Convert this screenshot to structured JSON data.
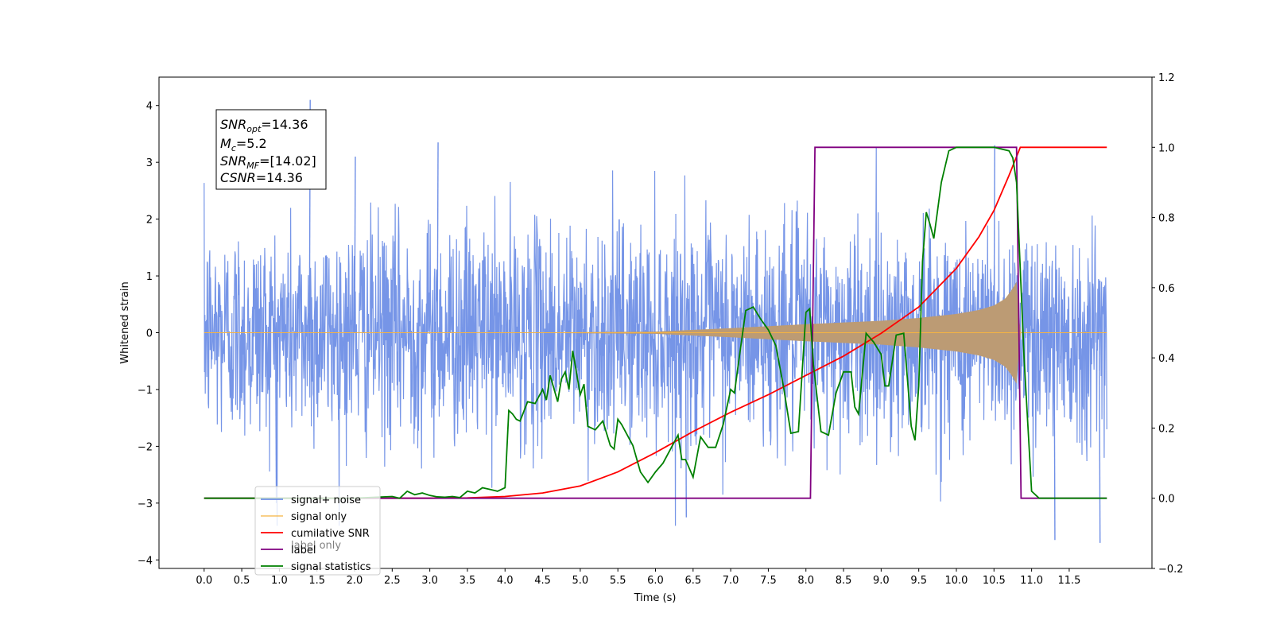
{
  "chart_data": {
    "type": "line",
    "xlabel": "Time (s)",
    "ylabel": "Whitened strain",
    "xlim": [
      -0.6,
      12.6
    ],
    "ylim": [
      -4.15,
      4.5
    ],
    "y2lim": [
      -0.2,
      1.2
    ],
    "x_ticks": [
      "0.0",
      "0.5",
      "1.0",
      "1.5",
      "2.0",
      "2.5",
      "3.0",
      "3.5",
      "4.0",
      "4.5",
      "5.0",
      "5.5",
      "6.0",
      "6.5",
      "7.0",
      "7.5",
      "8.0",
      "8.5",
      "9.0",
      "9.5",
      "10.0",
      "10.5",
      "11.0",
      "11.5"
    ],
    "y_ticks": [
      "4",
      "3",
      "2",
      "1",
      "0",
      "−1",
      "−2",
      "−3",
      "−4"
    ],
    "y2_ticks": [
      "1.2",
      "1.0",
      "0.8",
      "0.6",
      "0.4",
      "0.2",
      "0.0",
      "−0.2"
    ],
    "annotation": {
      "line1_main": "SNR",
      "line1_sub": "opt",
      "line1_val": "=14.36",
      "line2_main": "M",
      "line2_sub": "c",
      "line2_val": "=5.2",
      "line3_main": "SNR",
      "line3_sub": "MF",
      "line3_val": "=[14.02]",
      "line4_main": "CSNR",
      "line4_val": "=14.36"
    },
    "legend": {
      "location": "lower left",
      "entries": [
        "signal+ noise",
        "signal only",
        "cumilative SNR",
        "label",
        "signal statistics"
      ],
      "hidden_text": [
        "label only"
      ]
    },
    "colors": {
      "noise": "#6f8fe6",
      "signal": "#f5b342",
      "snr": "#ff0000",
      "label": "#800080",
      "stats": "#008000",
      "overlap": "#bc9b74"
    },
    "series": [
      {
        "name": "signal+ noise",
        "axis": "left",
        "description_values": {
          "x_start": 0.0,
          "x_end": 12.0,
          "typical_range": [
            -2.5,
            2.5
          ],
          "max": 4.1,
          "min": -3.7
        }
      },
      {
        "name": "signal only",
        "axis": "left",
        "envelope": {
          "x": [
            0.0,
            4.0,
            6.0,
            7.0,
            8.0,
            9.0,
            9.5,
            10.0,
            10.3,
            10.5,
            10.65,
            10.75,
            10.8,
            10.85,
            12.0
          ],
          "amp": [
            0.0,
            0.0,
            0.02,
            0.08,
            0.15,
            0.21,
            0.26,
            0.33,
            0.4,
            0.48,
            0.6,
            0.78,
            0.9,
            0.0,
            0.0
          ]
        }
      },
      {
        "name": "cumilative SNR",
        "axis": "right",
        "x": [
          0.0,
          1.0,
          2.0,
          3.0,
          3.5,
          4.0,
          4.5,
          5.0,
          5.5,
          6.0,
          6.5,
          7.0,
          7.5,
          8.0,
          8.5,
          9.0,
          9.5,
          10.0,
          10.3,
          10.5,
          10.7,
          10.85,
          11.0,
          12.0
        ],
        "y": [
          0.0,
          0.0,
          0.0,
          0.0,
          0.001,
          0.005,
          0.015,
          0.035,
          0.075,
          0.13,
          0.19,
          0.245,
          0.295,
          0.35,
          0.405,
          0.47,
          0.545,
          0.655,
          0.745,
          0.82,
          0.92,
          1.0,
          1.0,
          1.0
        ]
      },
      {
        "name": "label",
        "axis": "right",
        "x": [
          0.0,
          8.06,
          8.12,
          10.8,
          10.86,
          12.0
        ],
        "y": [
          0.0,
          0.0,
          1.0,
          1.0,
          0.0,
          0.0
        ]
      },
      {
        "name": "signal statistics",
        "axis": "right",
        "x": [
          0.0,
          1.0,
          2.0,
          2.5,
          2.6,
          2.7,
          2.8,
          2.9,
          3.0,
          3.1,
          3.2,
          3.3,
          3.4,
          3.5,
          3.6,
          3.7,
          3.8,
          3.9,
          4.0,
          4.05,
          4.1,
          4.15,
          4.2,
          4.3,
          4.4,
          4.5,
          4.55,
          4.6,
          4.7,
          4.75,
          4.8,
          4.85,
          4.9,
          5.0,
          5.05,
          5.1,
          5.2,
          5.3,
          5.4,
          5.45,
          5.5,
          5.55,
          5.6,
          5.7,
          5.8,
          5.9,
          6.0,
          6.1,
          6.2,
          6.3,
          6.35,
          6.4,
          6.5,
          6.6,
          6.7,
          6.8,
          6.9,
          7.0,
          7.05,
          7.1,
          7.2,
          7.3,
          7.4,
          7.5,
          7.6,
          7.7,
          7.8,
          7.9,
          8.0,
          8.05,
          8.1,
          8.2,
          8.3,
          8.4,
          8.5,
          8.6,
          8.65,
          8.7,
          8.8,
          8.9,
          9.0,
          9.05,
          9.1,
          9.2,
          9.3,
          9.4,
          9.45,
          9.5,
          9.55,
          9.6,
          9.65,
          9.7,
          9.8,
          9.9,
          10.0,
          10.5,
          10.7,
          10.75,
          10.8,
          10.9,
          11.0,
          11.1,
          12.0
        ],
        "y": [
          0.0,
          0.0,
          0.0,
          0.005,
          0.0,
          0.02,
          0.01,
          0.015,
          0.008,
          0.004,
          0.003,
          0.005,
          0.002,
          0.02,
          0.015,
          0.03,
          0.025,
          0.02,
          0.03,
          0.25,
          0.24,
          0.225,
          0.22,
          0.275,
          0.27,
          0.31,
          0.28,
          0.35,
          0.275,
          0.34,
          0.36,
          0.31,
          0.42,
          0.295,
          0.325,
          0.205,
          0.195,
          0.22,
          0.15,
          0.14,
          0.225,
          0.21,
          0.19,
          0.15,
          0.075,
          0.045,
          0.075,
          0.1,
          0.14,
          0.18,
          0.11,
          0.11,
          0.06,
          0.175,
          0.145,
          0.145,
          0.21,
          0.31,
          0.3,
          0.38,
          0.535,
          0.545,
          0.51,
          0.48,
          0.435,
          0.32,
          0.185,
          0.19,
          0.53,
          0.54,
          0.38,
          0.19,
          0.18,
          0.3,
          0.36,
          0.36,
          0.26,
          0.24,
          0.47,
          0.445,
          0.41,
          0.32,
          0.32,
          0.465,
          0.47,
          0.205,
          0.165,
          0.32,
          0.675,
          0.815,
          0.78,
          0.74,
          0.9,
          0.99,
          1.0,
          1.0,
          0.99,
          0.97,
          0.9,
          0.4,
          0.02,
          0.0,
          0.0
        ]
      }
    ]
  }
}
